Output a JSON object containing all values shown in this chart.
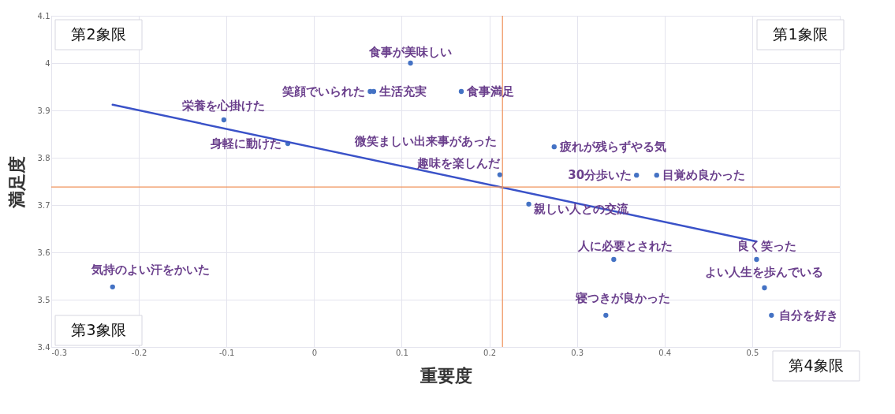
{
  "chart_data": {
    "type": "scatter",
    "xlabel": "重要度",
    "ylabel": "満足度",
    "xlim": [
      -0.3,
      0.6
    ],
    "xticks": [
      -0.3,
      -0.2,
      -0.1,
      0,
      0.1,
      0.2,
      0.3,
      0.4,
      0.5,
      {
        "value": 0.6,
        "label": null
      }
    ],
    "ylim": [
      3.4,
      4.1
    ],
    "yticks": [
      3.4,
      3.5,
      3.6,
      3.7,
      3.8,
      3.9,
      4,
      4.1
    ],
    "grid": true,
    "series": [
      {
        "color": "#4472c4",
        "marker": "circle",
        "x": [
          0.11,
          0.064,
          0.068,
          0.168,
          -0.103,
          -0.03,
          0.212,
          0.274,
          0.368,
          0.391,
          0.245,
          0.342,
          0.505,
          0.514,
          0.333,
          0.522,
          -0.23
        ],
        "values": [
          4.0,
          3.94,
          3.94,
          3.94,
          3.88,
          3.83,
          3.764,
          3.823,
          3.763,
          3.763,
          3.702,
          3.585,
          3.585,
          3.525,
          3.467,
          3.467,
          3.527
        ]
      },
      {
        "type": "line",
        "color": "#3a52c8",
        "x": [
          -0.23,
          0.505
        ],
        "values": [
          3.912,
          3.623
        ]
      }
    ],
    "ref_lines": [
      {
        "axis": "x",
        "value": 0.215,
        "color": "#f0925a"
      },
      {
        "axis": "y",
        "value": 3.738,
        "color": "#f0925a"
      }
    ],
    "annotations": [
      "第1象限",
      "第2象限",
      "第3象限",
      "第4象限",
      {
        "text": "食事が美味しい",
        "x": 0.11,
        "y": 4.0
      },
      {
        "text": "笑顔でいられた",
        "x": 0.064,
        "y": 3.94
      },
      {
        "text": "生活充実",
        "x": 0.068,
        "y": 3.94
      },
      {
        "text": "食事満足",
        "x": 0.168,
        "y": 3.94
      },
      {
        "text": "栄養を心掛けた",
        "x": -0.103,
        "y": 3.88
      },
      {
        "text": "身軽に動けた",
        "x": -0.03,
        "y": 3.83
      },
      {
        "text": "微笑ましい出来事があった",
        "x": 0.212,
        "y": 3.764
      },
      {
        "text": "趣味を楽しんだ",
        "x": 0.212,
        "y": 3.764
      },
      {
        "text": "疲れが残らずやる気",
        "x": 0.274,
        "y": 3.823
      },
      {
        "text": "30分歩いた",
        "x": 0.368,
        "y": 3.763
      },
      {
        "text": "目覚め良かった",
        "x": 0.391,
        "y": 3.763
      },
      {
        "text": "親しい人との交流",
        "x": 0.245,
        "y": 3.702
      },
      {
        "text": "人に必要とされた",
        "x": 0.342,
        "y": 3.585
      },
      {
        "text": "良く笑った",
        "x": 0.505,
        "y": 3.585
      },
      {
        "text": "よい人生を歩んでいる",
        "x": 0.514,
        "y": 3.525
      },
      {
        "text": "寝つきが良かった",
        "x": 0.333,
        "y": 3.467
      },
      {
        "text": "自分を好き",
        "x": 0.522,
        "y": 3.467
      },
      {
        "text": "気持のよい汗をかいた",
        "x": -0.23,
        "y": 3.527
      }
    ]
  }
}
